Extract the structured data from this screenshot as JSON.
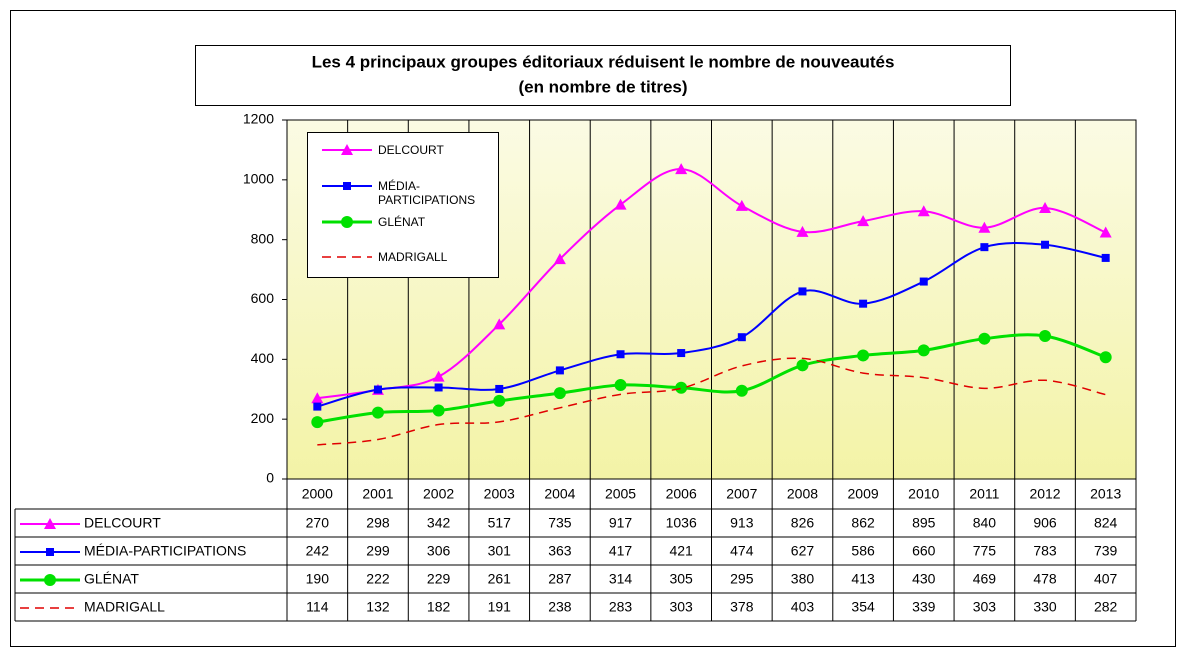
{
  "chart_data": {
    "type": "line",
    "smooth": true,
    "title": "Les 4 principaux groupes éditoriaux réduisent le nombre de nouveautés",
    "subtitle": "(en nombre de titres)",
    "categories": [
      "2000",
      "2001",
      "2002",
      "2003",
      "2004",
      "2005",
      "2006",
      "2007",
      "2008",
      "2009",
      "2010",
      "2011",
      "2012",
      "2013"
    ],
    "ylim": [
      0,
      1200
    ],
    "yticks": [
      0,
      200,
      400,
      600,
      800,
      1000,
      1200
    ],
    "grid": true,
    "legend": "upper-left",
    "data_table": true,
    "series": [
      {
        "name": "DELCOURT",
        "color": "#ff00ff",
        "marker": "triangle",
        "dash": false,
        "values": [
          270,
          298,
          342,
          517,
          735,
          917,
          1036,
          913,
          826,
          862,
          895,
          840,
          906,
          824
        ]
      },
      {
        "name": "MÉDIA-PARTICIPATIONS",
        "color": "#0000ff",
        "marker": "square",
        "dash": false,
        "values": [
          242,
          299,
          306,
          301,
          363,
          417,
          421,
          474,
          627,
          586,
          660,
          775,
          783,
          739
        ]
      },
      {
        "name": "GLÉNAT",
        "color": "#00e000",
        "marker": "circle",
        "dash": false,
        "values": [
          190,
          222,
          229,
          261,
          287,
          314,
          305,
          295,
          380,
          413,
          430,
          469,
          478,
          407
        ]
      },
      {
        "name": "MADRIGALL",
        "color": "#e00000",
        "marker": "none",
        "dash": true,
        "values": [
          114,
          132,
          182,
          191,
          238,
          283,
          303,
          378,
          403,
          354,
          339,
          303,
          330,
          282
        ]
      }
    ]
  }
}
